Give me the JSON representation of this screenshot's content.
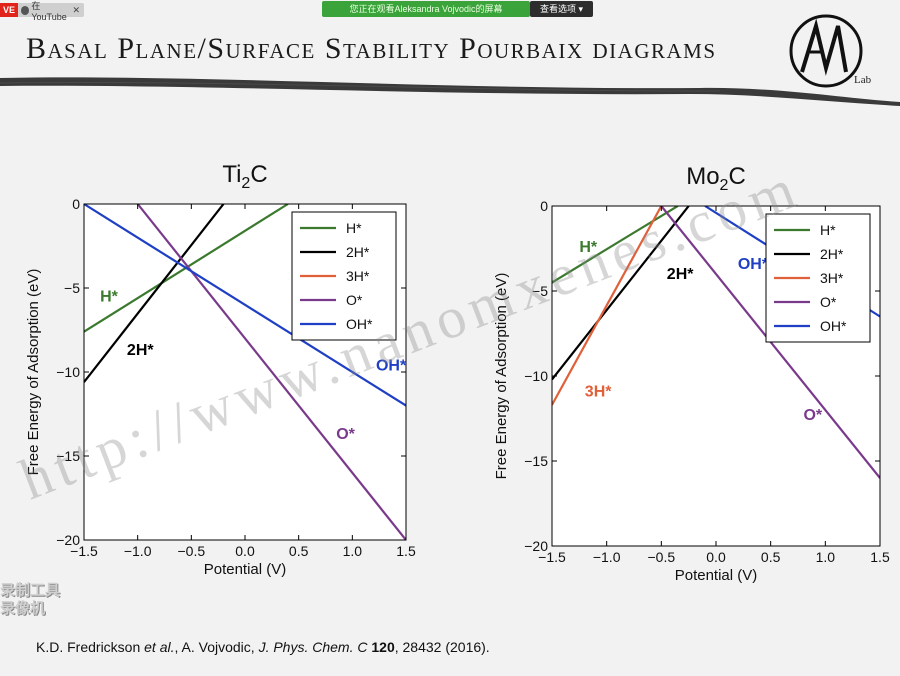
{
  "topbar": {
    "live_label": "VE",
    "youtube_label": "在YouTube",
    "share_banner": "您正在观看Aleksandra Vojvodic的屏幕",
    "view_options": "查看选项 ▾"
  },
  "slide": {
    "title": "Basal Plane/Surface Stability Pourbaix diagrams",
    "logo_text": "Lab",
    "citation": {
      "authors": "K.D. Fredrickson ",
      "et_al": "et al.",
      "coauthor": ", A. Vojvodic, ",
      "journal": "J. Phys. Chem. C",
      "volume": " 120",
      "pages": ", 28432 (2016)."
    },
    "watermark": "http://www.nanomxenes.com",
    "recorder_logo_line1": "录制工具",
    "recorder_logo_line2": "录像机"
  },
  "colors": {
    "H*": "#3b7a2e",
    "2H*": "#000000",
    "3H*": "#e0603a",
    "O*": "#7a3a8c",
    "OH*": "#1f3fc4"
  },
  "chart_data": [
    {
      "type": "line",
      "title_main": "Ti",
      "title_sub": "2",
      "title_end": "C",
      "xlabel": "Potential (V)",
      "ylabel": "Free Energy of Adsorption (eV)",
      "xlim": [
        -1.5,
        1.5
      ],
      "ylim": [
        -20,
        0
      ],
      "xticks": [
        "−1.5",
        "−1.0",
        "−0.5",
        "0.0",
        "0.5",
        "1.0",
        "1.5"
      ],
      "yticks": [
        "0",
        "−5",
        "−10",
        "−15",
        "−20"
      ],
      "legend": [
        "H*",
        "2H*",
        "3H*",
        "O*",
        "OH*"
      ],
      "legend_position": "top-right",
      "series": [
        {
          "name": "H*",
          "points": [
            [
              -1.5,
              -7.6
            ],
            [
              0.4,
              0.0
            ]
          ]
        },
        {
          "name": "2H*",
          "points": [
            [
              -1.5,
              -10.6
            ],
            [
              -0.2,
              0.0
            ]
          ]
        },
        {
          "name": "O*",
          "points": [
            [
              -1.0,
              0.0
            ],
            [
              1.5,
              -20.0
            ]
          ]
        },
        {
          "name": "OH*",
          "points": [
            [
              -1.5,
              0.0
            ],
            [
              1.5,
              -12.0
            ]
          ]
        }
      ],
      "annotations": [
        {
          "text": "H*",
          "x": -1.35,
          "y": -5.8,
          "series": "H*"
        },
        {
          "text": "2H*",
          "x": -1.1,
          "y": -9.0,
          "series": "2H*"
        },
        {
          "text": "OH*",
          "x": 1.22,
          "y": -9.9,
          "series": "OH*"
        },
        {
          "text": "O*",
          "x": 0.85,
          "y": -14.0,
          "series": "O*"
        }
      ]
    },
    {
      "type": "line",
      "title_main": "Mo",
      "title_sub": "2",
      "title_end": "C",
      "xlabel": "Potential (V)",
      "ylabel": "Free Energy of Adsorption (eV)",
      "xlim": [
        -1.5,
        1.5
      ],
      "ylim": [
        -20,
        0
      ],
      "xticks": [
        "−1.5",
        "−1.0",
        "−0.5",
        "0.0",
        "0.5",
        "1.0",
        "1.5"
      ],
      "yticks": [
        "0",
        "−5",
        "−10",
        "−15",
        "−20"
      ],
      "legend": [
        "H*",
        "2H*",
        "3H*",
        "O*",
        "OH*"
      ],
      "legend_position": "top-right",
      "series": [
        {
          "name": "H*",
          "points": [
            [
              -1.5,
              -4.5
            ],
            [
              -0.35,
              0.0
            ]
          ]
        },
        {
          "name": "2H*",
          "points": [
            [
              -1.5,
              -10.2
            ],
            [
              -0.25,
              0.0
            ]
          ]
        },
        {
          "name": "3H*",
          "points": [
            [
              -1.5,
              -11.7
            ],
            [
              -0.5,
              0.0
            ]
          ]
        },
        {
          "name": "O*",
          "points": [
            [
              -0.5,
              0.0
            ],
            [
              1.5,
              -16.0
            ]
          ]
        },
        {
          "name": "OH*",
          "points": [
            [
              -0.1,
              0.0
            ],
            [
              1.5,
              -6.5
            ]
          ]
        }
      ],
      "annotations": [
        {
          "text": "H*",
          "x": -1.25,
          "y": -2.7,
          "series": "H*"
        },
        {
          "text": "2H*",
          "x": -0.45,
          "y": -4.3,
          "series": "2H*"
        },
        {
          "text": "3H*",
          "x": -1.2,
          "y": -11.2,
          "series": "3H*"
        },
        {
          "text": "OH*",
          "x": 0.2,
          "y": -3.7,
          "series": "OH*"
        },
        {
          "text": "O*",
          "x": 0.8,
          "y": -12.6,
          "series": "O*"
        }
      ]
    }
  ]
}
